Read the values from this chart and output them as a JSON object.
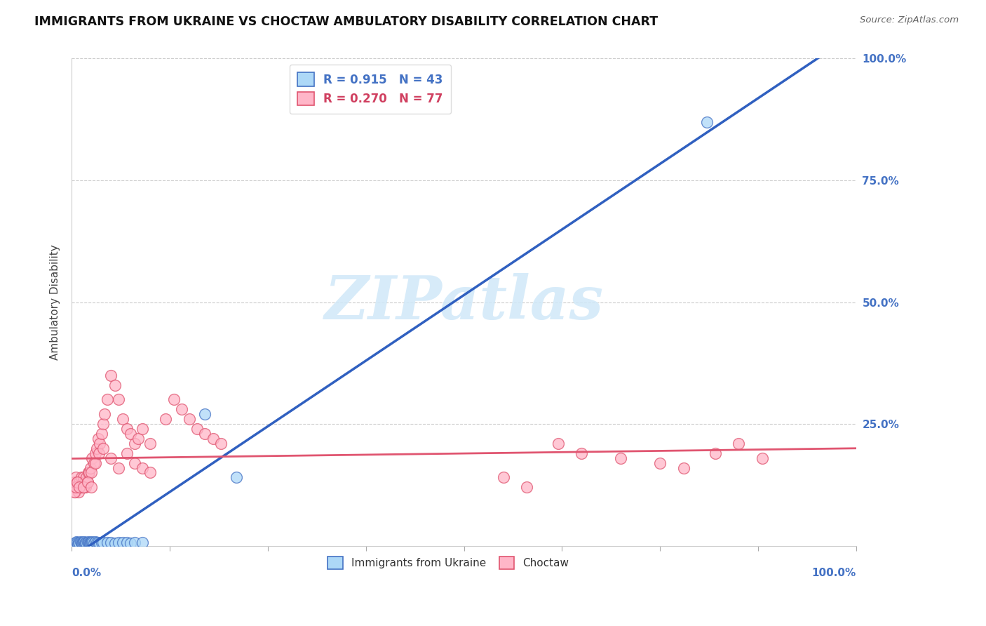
{
  "title": "IMMIGRANTS FROM UKRAINE VS CHOCTAW AMBULATORY DISABILITY CORRELATION CHART",
  "source": "Source: ZipAtlas.com",
  "ylabel": "Ambulatory Disability",
  "ukraine_color": "#add8f7",
  "choctaw_color": "#ffb6c8",
  "ukraine_edge_color": "#4472c4",
  "choctaw_edge_color": "#e05570",
  "ukraine_line_color": "#3060c0",
  "choctaw_line_color": "#e05570",
  "watermark_color": "#d0e8f8",
  "watermark": "ZIPatlas",
  "ukraine_r": 0.915,
  "choctaw_r": 0.27,
  "ukraine_n": 43,
  "choctaw_n": 77,
  "ukraine_scatter_x": [
    0.003,
    0.005,
    0.006,
    0.007,
    0.008,
    0.009,
    0.01,
    0.011,
    0.012,
    0.013,
    0.014,
    0.015,
    0.016,
    0.017,
    0.018,
    0.019,
    0.02,
    0.021,
    0.022,
    0.023,
    0.024,
    0.025,
    0.026,
    0.027,
    0.028,
    0.03,
    0.032,
    0.034,
    0.036,
    0.038,
    0.04,
    0.045,
    0.05,
    0.055,
    0.06,
    0.065,
    0.07,
    0.075,
    0.08,
    0.09,
    0.17,
    0.21,
    0.81
  ],
  "ukraine_scatter_y": [
    0.005,
    0.003,
    0.008,
    0.006,
    0.004,
    0.007,
    0.005,
    0.008,
    0.006,
    0.005,
    0.007,
    0.006,
    0.008,
    0.005,
    0.007,
    0.005,
    0.006,
    0.008,
    0.007,
    0.005,
    0.006,
    0.007,
    0.008,
    0.006,
    0.005,
    0.008,
    0.007,
    0.006,
    0.005,
    0.007,
    0.006,
    0.007,
    0.006,
    0.005,
    0.006,
    0.007,
    0.006,
    0.005,
    0.007,
    0.006,
    0.27,
    0.14,
    0.87
  ],
  "choctaw_scatter_x": [
    0.002,
    0.003,
    0.004,
    0.005,
    0.006,
    0.007,
    0.008,
    0.009,
    0.01,
    0.011,
    0.012,
    0.013,
    0.014,
    0.015,
    0.016,
    0.017,
    0.018,
    0.019,
    0.02,
    0.021,
    0.022,
    0.024,
    0.026,
    0.028,
    0.03,
    0.032,
    0.034,
    0.036,
    0.038,
    0.04,
    0.042,
    0.045,
    0.05,
    0.055,
    0.06,
    0.065,
    0.07,
    0.075,
    0.08,
    0.085,
    0.09,
    0.1,
    0.12,
    0.13,
    0.14,
    0.15,
    0.16,
    0.17,
    0.18,
    0.19,
    0.025,
    0.03,
    0.035,
    0.04,
    0.05,
    0.06,
    0.07,
    0.08,
    0.09,
    0.1,
    0.55,
    0.58,
    0.62,
    0.65,
    0.7,
    0.75,
    0.78,
    0.82,
    0.85,
    0.88,
    0.003,
    0.005,
    0.007,
    0.01,
    0.015,
    0.02,
    0.025
  ],
  "choctaw_scatter_y": [
    0.12,
    0.13,
    0.11,
    0.14,
    0.12,
    0.13,
    0.12,
    0.11,
    0.13,
    0.12,
    0.14,
    0.12,
    0.13,
    0.14,
    0.12,
    0.13,
    0.12,
    0.14,
    0.13,
    0.15,
    0.15,
    0.16,
    0.18,
    0.17,
    0.19,
    0.2,
    0.22,
    0.21,
    0.23,
    0.25,
    0.27,
    0.3,
    0.35,
    0.33,
    0.3,
    0.26,
    0.24,
    0.23,
    0.21,
    0.22,
    0.24,
    0.21,
    0.26,
    0.3,
    0.28,
    0.26,
    0.24,
    0.23,
    0.22,
    0.21,
    0.15,
    0.17,
    0.19,
    0.2,
    0.18,
    0.16,
    0.19,
    0.17,
    0.16,
    0.15,
    0.14,
    0.12,
    0.21,
    0.19,
    0.18,
    0.17,
    0.16,
    0.19,
    0.21,
    0.18,
    0.11,
    0.12,
    0.13,
    0.12,
    0.12,
    0.13,
    0.12
  ]
}
